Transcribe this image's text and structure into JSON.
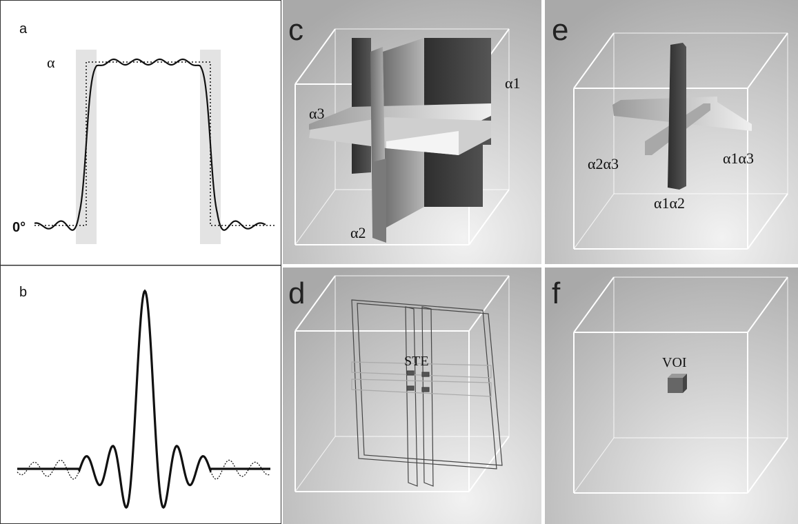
{
  "panels": [
    {
      "label": "a",
      "texts": [
        "α",
        "0°"
      ]
    },
    {
      "label": "b",
      "texts": []
    },
    {
      "label": "c",
      "texts": [
        "α1",
        "α3",
        "α2"
      ]
    },
    {
      "label": "d",
      "texts": [
        "STE"
      ]
    },
    {
      "label": "e",
      "texts": [
        "α2α3",
        "α1α3",
        "α1α2"
      ]
    },
    {
      "label": "f",
      "texts": [
        "VOI"
      ]
    }
  ]
}
